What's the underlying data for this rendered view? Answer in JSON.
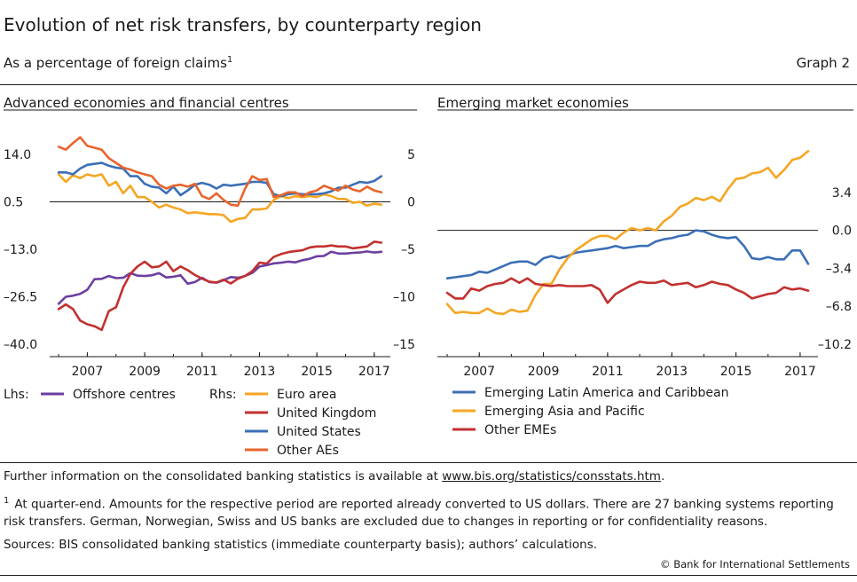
{
  "title": "Evolution of net risk transfers, by counterparty region",
  "subtitle": "As a percentage of foreign claims",
  "subtitle_sup": "1",
  "graph_label": "Graph 2",
  "panels": {
    "left_title": "Advanced economies and financial centres",
    "right_title": "Emerging market economies"
  },
  "legend": {
    "lhs_label": "Lhs:",
    "rhs_label": "Rhs:"
  },
  "footnotes": {
    "further_info_prefix": "Further information on the consolidated banking statistics is available at ",
    "further_info_link": "www.bis.org/statistics/consstats.htm",
    "further_info_suffix": ".",
    "note1_marker": "1",
    "note1_text": "At quarter-end. Amounts for the respective period are reported already converted to US dollars. There are 27 banking systems reporting risk transfers. German, Norwegian, Swiss and US banks are excluded due to changes in reporting or for confidentiality reasons.",
    "sources": "Sources: BIS consolidated banking statistics (immediate counterparty basis); authors’ calculations.",
    "copyright": "© Bank for International Settlements"
  },
  "colors": {
    "purple": "#6b3fa0",
    "orange_yellow": "#f5a623",
    "red": "#c1312f",
    "blue": "#3b6fb6",
    "orange": "#e8642c"
  },
  "chart_data": [
    {
      "type": "line",
      "title": "Advanced economies and financial centres",
      "xlim": [
        2005.75,
        2017.5
      ],
      "x_ticks": [
        2007,
        2009,
        2011,
        2013,
        2015,
        2017
      ],
      "y_left": {
        "lim": [
          -40,
          14
        ],
        "ticks": [
          14.0,
          0.5,
          -13.0,
          -26.5,
          -40.0
        ],
        "tick_labels": [
          "14.0",
          "0.5",
          "–13.0",
          "–26.5",
          "–40.0"
        ]
      },
      "y_right": {
        "lim": [
          -15,
          5
        ],
        "ticks": [
          5,
          0,
          -5,
          -10,
          -15
        ],
        "tick_labels": [
          "5",
          "0",
          "–5",
          "–10",
          "–15"
        ]
      },
      "zero_line_right": 0,
      "series": [
        {
          "name": "Offshore centres",
          "axis": "left",
          "color": "#6b3fa0",
          "x": [
            2006.0,
            2006.25,
            2006.5,
            2006.75,
            2007.0,
            2007.25,
            2007.5,
            2007.75,
            2008.0,
            2008.25,
            2008.5,
            2008.75,
            2009.0,
            2009.25,
            2009.5,
            2009.75,
            2010.0,
            2010.25,
            2010.5,
            2010.75,
            2011.0,
            2011.25,
            2011.5,
            2011.75,
            2012.0,
            2012.25,
            2012.5,
            2012.75,
            2013.0,
            2013.25,
            2013.5,
            2013.75,
            2014.0,
            2014.25,
            2014.5,
            2014.75,
            2015.0,
            2015.25,
            2015.5,
            2015.75,
            2016.0,
            2016.25,
            2016.5,
            2016.75,
            2017.0,
            2017.25
          ],
          "y": [
            -28.5,
            -26.5,
            -26.2,
            -25.7,
            -24.5,
            -21.5,
            -21.4,
            -20.6,
            -21.2,
            -21.1,
            -19.8,
            -20.5,
            -20.6,
            -20.4,
            -19.8,
            -21.0,
            -20.8,
            -20.4,
            -22.8,
            -22.3,
            -21.1,
            -22.3,
            -22.5,
            -21.8,
            -20.9,
            -21.1,
            -20.6,
            -19.7,
            -17.9,
            -17.5,
            -17.0,
            -16.8,
            -16.5,
            -16.7,
            -16.1,
            -15.7,
            -15.0,
            -14.9,
            -13.7,
            -14.2,
            -14.2,
            -14.0,
            -13.9,
            -13.6,
            -13.9,
            -13.7
          ]
        },
        {
          "name": "Euro area",
          "axis": "right",
          "color": "#f5a623",
          "x": [
            2006.0,
            2006.25,
            2006.5,
            2006.75,
            2007.0,
            2007.25,
            2007.5,
            2007.75,
            2008.0,
            2008.25,
            2008.5,
            2008.75,
            2009.0,
            2009.25,
            2009.5,
            2009.75,
            2010.0,
            2010.25,
            2010.5,
            2010.75,
            2011.0,
            2011.25,
            2011.5,
            2011.75,
            2012.0,
            2012.25,
            2012.5,
            2012.75,
            2013.0,
            2013.25,
            2013.5,
            2013.75,
            2014.0,
            2014.25,
            2014.5,
            2014.75,
            2015.0,
            2015.25,
            2015.5,
            2015.75,
            2016.0,
            2016.25,
            2016.5,
            2016.75,
            2017.0,
            2017.25
          ],
          "y": [
            2.9,
            2.1,
            2.8,
            2.5,
            2.9,
            2.7,
            2.9,
            1.7,
            2.1,
            0.9,
            1.7,
            0.5,
            0.5,
            0.0,
            -0.6,
            -0.3,
            -0.6,
            -0.8,
            -1.2,
            -1.1,
            -1.2,
            -1.3,
            -1.3,
            -1.4,
            -2.1,
            -1.8,
            -1.7,
            -0.8,
            -0.8,
            -0.7,
            0.2,
            0.6,
            0.4,
            0.6,
            0.5,
            0.6,
            0.5,
            0.8,
            0.6,
            0.3,
            0.3,
            -0.1,
            0.0,
            -0.4,
            -0.2,
            -0.3
          ]
        },
        {
          "name": "United Kingdom",
          "axis": "right",
          "color": "#c1312f",
          "x": [
            2006.0,
            2006.25,
            2006.5,
            2006.75,
            2007.0,
            2007.25,
            2007.5,
            2007.75,
            2008.0,
            2008.25,
            2008.5,
            2008.75,
            2009.0,
            2009.25,
            2009.5,
            2009.75,
            2010.0,
            2010.25,
            2010.5,
            2010.75,
            2011.0,
            2011.25,
            2011.5,
            2011.75,
            2012.0,
            2012.25,
            2012.5,
            2012.75,
            2013.0,
            2013.25,
            2013.5,
            2013.75,
            2014.0,
            2014.25,
            2014.5,
            2014.75,
            2015.0,
            2015.25,
            2015.5,
            2015.75,
            2016.0,
            2016.25,
            2016.5,
            2016.75,
            2017.0,
            2017.25
          ],
          "y": [
            -11.3,
            -10.8,
            -11.3,
            -12.5,
            -12.9,
            -13.1,
            -13.5,
            -11.5,
            -11.1,
            -9.0,
            -7.6,
            -6.8,
            -6.3,
            -6.9,
            -6.8,
            -6.3,
            -7.3,
            -6.8,
            -7.2,
            -7.7,
            -8.1,
            -8.4,
            -8.5,
            -8.2,
            -8.6,
            -8.1,
            -7.8,
            -7.3,
            -6.4,
            -6.5,
            -5.8,
            -5.5,
            -5.3,
            -5.2,
            -5.1,
            -4.8,
            -4.7,
            -4.7,
            -4.6,
            -4.7,
            -4.7,
            -4.9,
            -4.8,
            -4.7,
            -4.2,
            -4.3
          ]
        },
        {
          "name": "United States",
          "axis": "right",
          "color": "#3b6fb6",
          "x": [
            2006.0,
            2006.25,
            2006.5,
            2006.75,
            2007.0,
            2007.25,
            2007.5,
            2007.75,
            2008.0,
            2008.25,
            2008.5,
            2008.75,
            2009.0,
            2009.25,
            2009.5,
            2009.75,
            2010.0,
            2010.25,
            2010.5,
            2010.75,
            2011.0,
            2011.25,
            2011.5,
            2011.75,
            2012.0,
            2012.25,
            2012.5,
            2012.75,
            2013.0,
            2013.25,
            2013.5,
            2013.75,
            2014.0,
            2014.25,
            2014.5,
            2014.75,
            2015.0,
            2015.25,
            2015.5,
            2015.75,
            2016.0,
            2016.25,
            2016.5,
            2016.75,
            2017.0,
            2017.25
          ],
          "y": [
            3.1,
            3.1,
            2.9,
            3.5,
            3.9,
            4.0,
            4.1,
            3.8,
            3.6,
            3.5,
            2.7,
            2.7,
            1.9,
            1.6,
            1.5,
            0.9,
            1.6,
            0.7,
            1.2,
            1.8,
            2.0,
            1.8,
            1.4,
            1.8,
            1.7,
            1.8,
            1.9,
            2.1,
            2.1,
            2.0,
            0.8,
            0.6,
            0.8,
            0.9,
            0.8,
            0.8,
            0.8,
            0.9,
            1.1,
            1.5,
            1.5,
            1.8,
            2.1,
            2.0,
            2.2,
            2.7
          ]
        },
        {
          "name": "Other AEs",
          "axis": "right",
          "color": "#e8642c",
          "x": [
            2006.0,
            2006.25,
            2006.5,
            2006.75,
            2007.0,
            2007.25,
            2007.5,
            2007.75,
            2008.0,
            2008.25,
            2008.5,
            2008.75,
            2009.0,
            2009.25,
            2009.5,
            2009.75,
            2010.0,
            2010.25,
            2010.5,
            2010.75,
            2011.0,
            2011.25,
            2011.5,
            2011.75,
            2012.0,
            2012.25,
            2012.5,
            2012.75,
            2013.0,
            2013.25,
            2013.5,
            2013.75,
            2014.0,
            2014.25,
            2014.5,
            2014.75,
            2015.0,
            2015.25,
            2015.5,
            2015.75,
            2016.0,
            2016.25,
            2016.5,
            2016.75,
            2017.0,
            2017.25
          ],
          "y": [
            5.8,
            5.5,
            6.2,
            6.8,
            5.9,
            5.7,
            5.5,
            4.6,
            4.1,
            3.6,
            3.4,
            3.1,
            2.9,
            2.7,
            1.8,
            1.4,
            1.7,
            1.8,
            1.6,
            1.9,
            0.6,
            0.3,
            0.9,
            0.2,
            -0.3,
            -0.4,
            1.4,
            2.7,
            2.3,
            2.4,
            0.5,
            0.7,
            1.0,
            1.0,
            0.6,
            1.0,
            1.2,
            1.7,
            1.4,
            1.2,
            1.7,
            1.3,
            1.1,
            1.6,
            1.2,
            1.0
          ]
        }
      ]
    },
    {
      "type": "line",
      "title": "Emerging market economies",
      "xlim": [
        2005.75,
        2017.5
      ],
      "x_ticks": [
        2007,
        2009,
        2011,
        2013,
        2015,
        2017
      ],
      "y_right": {
        "lim": [
          -10.2,
          6.8
        ],
        "ticks": [
          3.4,
          0.0,
          -3.4,
          -6.8,
          -10.2
        ],
        "tick_labels": [
          "3.4",
          "0.0",
          "–3.4",
          "–6.8",
          "–10.2"
        ]
      },
      "zero_line": 0,
      "series": [
        {
          "name": "Emerging Latin America and Caribbean",
          "color": "#3b6fb6",
          "x": [
            2006.0,
            2006.25,
            2006.5,
            2006.75,
            2007.0,
            2007.25,
            2007.5,
            2007.75,
            2008.0,
            2008.25,
            2008.5,
            2008.75,
            2009.0,
            2009.25,
            2009.5,
            2009.75,
            2010.0,
            2010.25,
            2010.5,
            2010.75,
            2011.0,
            2011.25,
            2011.5,
            2011.75,
            2012.0,
            2012.25,
            2012.5,
            2012.75,
            2013.0,
            2013.25,
            2013.5,
            2013.75,
            2014.0,
            2014.25,
            2014.5,
            2014.75,
            2015.0,
            2015.25,
            2015.5,
            2015.75,
            2016.0,
            2016.25,
            2016.5,
            2016.75,
            2017.0,
            2017.25
          ],
          "y": [
            -4.3,
            -4.2,
            -4.1,
            -4.0,
            -3.7,
            -3.8,
            -3.5,
            -3.2,
            -2.9,
            -2.8,
            -2.8,
            -3.1,
            -2.5,
            -2.3,
            -2.5,
            -2.3,
            -2.0,
            -1.9,
            -1.8,
            -1.7,
            -1.6,
            -1.4,
            -1.6,
            -1.5,
            -1.4,
            -1.4,
            -1.0,
            -0.8,
            -0.7,
            -0.5,
            -0.4,
            0.0,
            -0.1,
            -0.4,
            -0.6,
            -0.7,
            -0.6,
            -1.4,
            -2.5,
            -2.6,
            -2.4,
            -2.6,
            -2.6,
            -1.8,
            -1.8,
            -3.0
          ]
        },
        {
          "name": "Emerging Asia and Pacific",
          "color": "#f5a623",
          "x": [
            2006.0,
            2006.25,
            2006.5,
            2006.75,
            2007.0,
            2007.25,
            2007.5,
            2007.75,
            2008.0,
            2008.25,
            2008.5,
            2008.75,
            2009.0,
            2009.25,
            2009.5,
            2009.75,
            2010.0,
            2010.25,
            2010.5,
            2010.75,
            2011.0,
            2011.25,
            2011.5,
            2011.75,
            2012.0,
            2012.25,
            2012.5,
            2012.75,
            2013.0,
            2013.25,
            2013.5,
            2013.75,
            2014.0,
            2014.25,
            2014.5,
            2014.75,
            2015.0,
            2015.25,
            2015.5,
            2015.75,
            2016.0,
            2016.25,
            2016.5,
            2016.75,
            2017.0,
            2017.25
          ],
          "y": [
            -6.6,
            -7.4,
            -7.3,
            -7.4,
            -7.4,
            -7.0,
            -7.4,
            -7.5,
            -7.1,
            -7.3,
            -7.2,
            -5.8,
            -4.8,
            -4.8,
            -3.5,
            -2.5,
            -1.8,
            -1.3,
            -0.8,
            -0.5,
            -0.5,
            -0.8,
            -0.2,
            0.2,
            0.0,
            0.2,
            0.0,
            0.8,
            1.3,
            2.1,
            2.4,
            2.9,
            2.7,
            3.0,
            2.6,
            3.7,
            4.6,
            4.7,
            5.1,
            5.2,
            5.6,
            4.7,
            5.4,
            6.3,
            6.5,
            7.1
          ]
        },
        {
          "name": "Other EMEs",
          "color": "#c1312f",
          "x": [
            2006.0,
            2006.25,
            2006.5,
            2006.75,
            2007.0,
            2007.25,
            2007.5,
            2007.75,
            2008.0,
            2008.25,
            2008.5,
            2008.75,
            2009.0,
            2009.25,
            2009.5,
            2009.75,
            2010.0,
            2010.25,
            2010.5,
            2010.75,
            2011.0,
            2011.25,
            2011.5,
            2011.75,
            2012.0,
            2012.25,
            2012.5,
            2012.75,
            2013.0,
            2013.25,
            2013.5,
            2013.75,
            2014.0,
            2014.25,
            2014.5,
            2014.75,
            2015.0,
            2015.25,
            2015.5,
            2015.75,
            2016.0,
            2016.25,
            2016.5,
            2016.75,
            2017.0,
            2017.25
          ],
          "y": [
            -5.6,
            -6.1,
            -6.1,
            -5.2,
            -5.4,
            -5.0,
            -4.8,
            -4.7,
            -4.3,
            -4.7,
            -4.3,
            -4.8,
            -4.9,
            -5.0,
            -4.9,
            -5.0,
            -5.0,
            -5.0,
            -4.9,
            -5.3,
            -6.5,
            -5.7,
            -5.3,
            -4.9,
            -4.6,
            -4.7,
            -4.7,
            -4.5,
            -4.9,
            -4.8,
            -4.7,
            -5.1,
            -4.9,
            -4.6,
            -4.8,
            -4.9,
            -5.3,
            -5.6,
            -6.1,
            -5.9,
            -5.7,
            -5.6,
            -5.1,
            -5.3,
            -5.2,
            -5.4
          ]
        }
      ]
    }
  ]
}
